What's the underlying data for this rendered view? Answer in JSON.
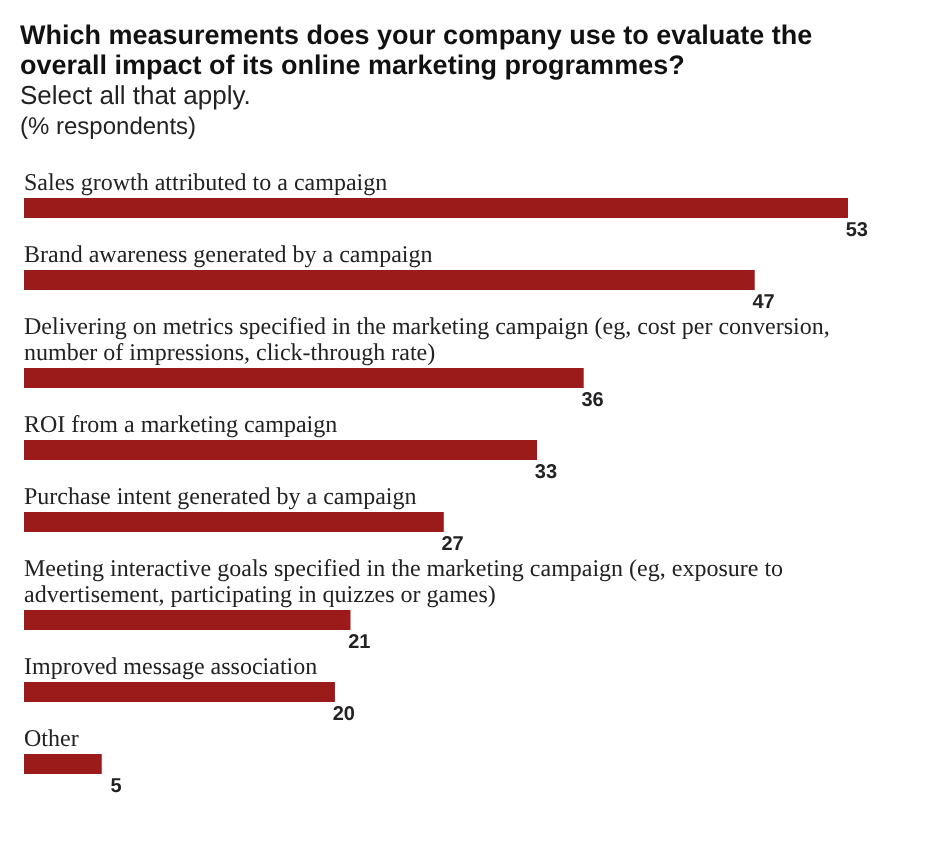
{
  "chart_data": {
    "type": "bar",
    "orientation": "horizontal",
    "title": "Which measurements does your company use to evaluate the overall impact of its online marketing programmes?",
    "subtitle": "Select all that apply.",
    "annotations": [
      "(% respondents)"
    ],
    "categories": [
      "Sales growth attributed to a campaign",
      "Brand awareness generated by a campaign",
      "Delivering on metrics specified in the marketing campaign (eg, cost per conversion, number of impressions, click-through rate)",
      "ROI from a marketing campaign",
      "Purchase intent generated by a campaign",
      "Meeting interactive goals specified in the marketing campaign (eg, exposure to advertisement, participating in quizzes or games)",
      "Improved message association",
      "Other"
    ],
    "values": [
      53,
      47,
      36,
      33,
      27,
      21,
      20,
      5
    ],
    "color": "#9b1b1b",
    "data_labels": true
  }
}
